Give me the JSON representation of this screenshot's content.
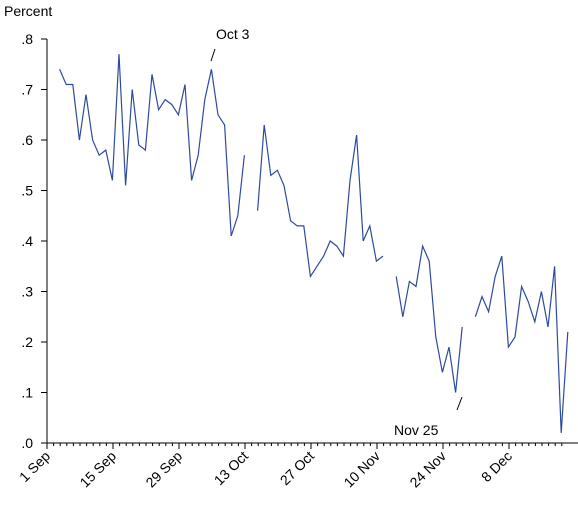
{
  "chart_data": {
    "type": "line",
    "y_label": "Percent",
    "annotations": [
      {
        "text": "Oct 3"
      },
      {
        "text": "Nov 25"
      }
    ],
    "categories": [
      "1 Sep",
      null,
      null,
      null,
      null,
      null,
      null,
      null,
      null,
      null,
      "15 Sep",
      null,
      null,
      null,
      null,
      null,
      null,
      null,
      null,
      null,
      "29 Sep",
      null,
      null,
      null,
      null,
      null,
      null,
      null,
      null,
      null,
      "13 Oct",
      null,
      null,
      null,
      null,
      null,
      null,
      null,
      null,
      null,
      "27 Oct",
      null,
      null,
      null,
      null,
      null,
      null,
      null,
      null,
      null,
      "10 Nov",
      null,
      null,
      null,
      null,
      null,
      null,
      null,
      null,
      null,
      "24 Nov",
      null,
      null,
      null,
      null,
      null,
      null,
      null,
      null,
      null,
      "8 Dec",
      null,
      null,
      null,
      null,
      null,
      null,
      null,
      null
    ],
    "series": [
      {
        "name": "Percent",
        "color": "#2e4a9e",
        "values": [
          null,
          0.74,
          0.71,
          0.71,
          0.6,
          0.69,
          0.6,
          0.57,
          0.58,
          0.52,
          0.77,
          0.51,
          0.7,
          0.59,
          0.58,
          0.73,
          0.66,
          0.68,
          0.67,
          0.65,
          0.71,
          0.52,
          0.57,
          0.68,
          0.74,
          0.65,
          0.63,
          0.41,
          0.45,
          0.57,
          null,
          0.46,
          0.63,
          0.53,
          0.54,
          0.51,
          0.44,
          0.43,
          0.43,
          0.33,
          0.35,
          0.37,
          0.4,
          0.39,
          0.37,
          0.52,
          0.61,
          0.4,
          0.43,
          0.36,
          0.37,
          null,
          0.33,
          0.25,
          0.32,
          0.31,
          0.39,
          0.36,
          0.21,
          0.14,
          0.19,
          0.1,
          0.23,
          null,
          0.25,
          0.29,
          0.26,
          0.33,
          0.37,
          0.19,
          0.21,
          0.31,
          0.28,
          0.24,
          0.3,
          0.23,
          0.35,
          0.02,
          0.22
        ]
      }
    ],
    "ylim": [
      0,
      0.8
    ],
    "yticks": [
      {
        "value": 0,
        "label": ".0"
      },
      {
        "value": 0.1,
        "label": ".1"
      },
      {
        "value": 0.2,
        "label": ".2"
      },
      {
        "value": 0.3,
        "label": ".3"
      },
      {
        "value": 0.4,
        "label": ".4"
      },
      {
        "value": 0.5,
        "label": ".5"
      },
      {
        "value": 0.6,
        "label": ".6"
      },
      {
        "value": 0.7,
        "label": ".7"
      },
      {
        "value": 0.8,
        "label": ".8"
      }
    ],
    "grid": false
  }
}
